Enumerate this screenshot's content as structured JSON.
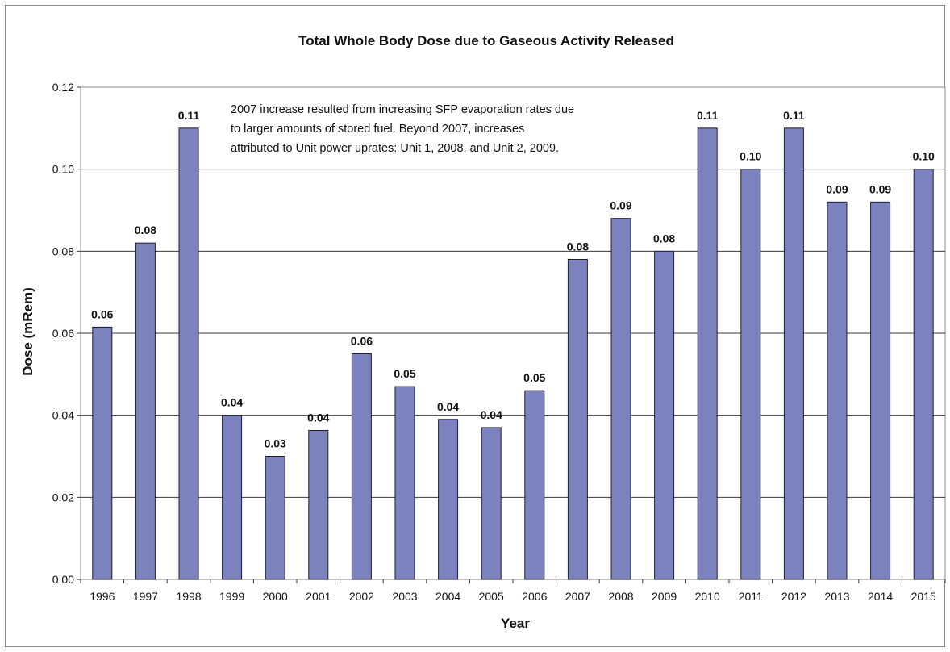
{
  "chart_data": {
    "type": "bar",
    "title": "Total Whole Body Dose due to Gaseous Activity Released",
    "xlabel": "Year",
    "ylabel": "Dose (mRem)",
    "ylim": [
      0,
      0.12
    ],
    "yticks": [
      "0.00",
      "0.02",
      "0.04",
      "0.06",
      "0.08",
      "0.10",
      "0.12"
    ],
    "grid": true,
    "bar_color": "#7b82bd",
    "categories": [
      "1996",
      "1997",
      "1998",
      "1999",
      "2000",
      "2001",
      "2002",
      "2003",
      "2004",
      "2005",
      "2006",
      "2007",
      "2008",
      "2009",
      "2010",
      "2011",
      "2012",
      "2013",
      "2014",
      "2015"
    ],
    "values": [
      0.0615,
      0.082,
      0.11,
      0.04,
      0.03,
      0.0363,
      0.055,
      0.047,
      0.039,
      0.037,
      0.046,
      0.078,
      0.088,
      0.08,
      0.11,
      0.1,
      0.11,
      0.092,
      0.092,
      0.1
    ],
    "data_labels": [
      "0.06",
      "0.08",
      "0.11",
      "0.04",
      "0.03",
      "0.04",
      "0.06",
      "0.05",
      "0.04",
      "0.04",
      "0.05",
      "0.08",
      "0.09",
      "0.08",
      "0.11",
      "0.10",
      "0.11",
      "0.09",
      "0.09",
      "0.10"
    ],
    "annotation": [
      "2007 increase resulted from increasing SFP evaporation rates due",
      "to larger amounts of stored fuel. Beyond 2007, increases",
      "attributed to Unit power uprates: Unit 1, 2008, and Unit 2, 2009."
    ]
  }
}
